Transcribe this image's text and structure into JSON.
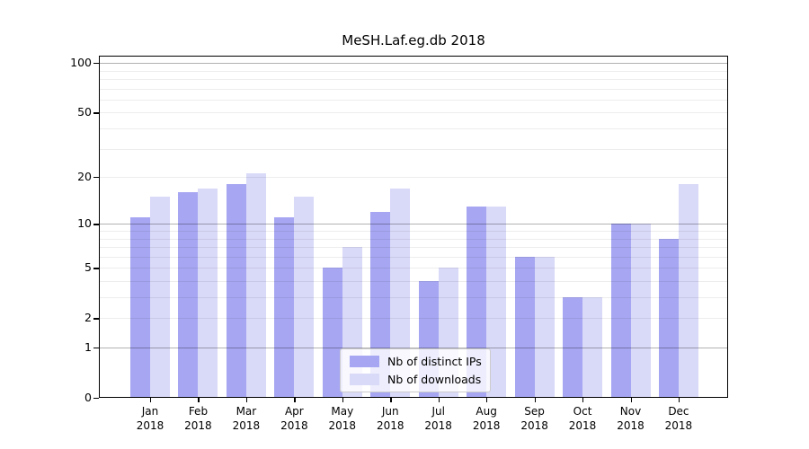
{
  "chart_data": {
    "type": "bar",
    "title": "MeSH.Laf.eg.db 2018",
    "categories": [
      "Jan",
      "Feb",
      "Mar",
      "Apr",
      "May",
      "Jun",
      "Jul",
      "Aug",
      "Sep",
      "Oct",
      "Nov",
      "Dec"
    ],
    "year_label": "2018",
    "series": [
      {
        "name": "Nb of distinct IPs",
        "key": "distinct-ips",
        "color": "#a6a6f2",
        "values": [
          11,
          16,
          18,
          11,
          5,
          12,
          4,
          13,
          6,
          3,
          10,
          8
        ]
      },
      {
        "name": "Nb of downloads",
        "key": "downloads",
        "color": "#d9d9f8",
        "values": [
          15,
          17,
          21,
          15,
          7,
          17,
          5,
          13,
          6,
          3,
          10,
          18
        ]
      }
    ],
    "yscale": "log1p",
    "ylim": [
      0,
      100
    ],
    "yticks": [
      100,
      50,
      20,
      10,
      5,
      2,
      1,
      0
    ],
    "minor_gridlines": [
      2,
      3,
      4,
      5,
      6,
      7,
      8,
      9,
      20,
      30,
      40,
      50,
      60,
      70,
      80,
      90
    ],
    "decade_gridlines": [
      1,
      10,
      100
    ],
    "legend_position": "lower center",
    "grid": true
  }
}
